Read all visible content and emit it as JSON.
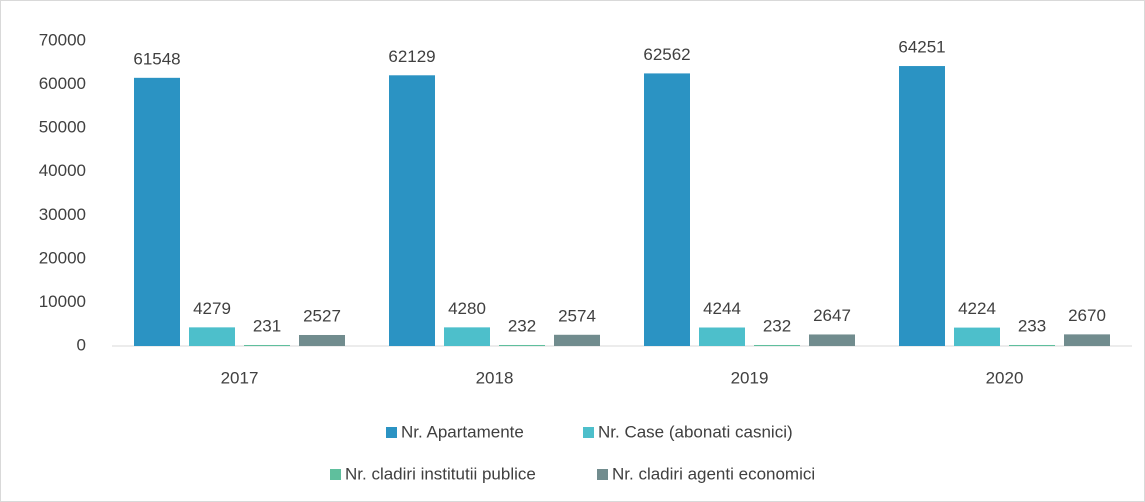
{
  "chart_data": {
    "type": "bar",
    "categories": [
      "2017",
      "2018",
      "2019",
      "2020"
    ],
    "series": [
      {
        "name": "Nr. Apartamente",
        "color": "#2b93c3",
        "values": [
          61548,
          62129,
          62562,
          64251
        ]
      },
      {
        "name": "Nr. Case (abonati casnici)",
        "color": "#4dbfcb",
        "values": [
          4279,
          4280,
          4244,
          4224
        ]
      },
      {
        "name": "Nr. cladiri institutii publice",
        "color": "#5fbf9d",
        "values": [
          231,
          232,
          232,
          233
        ]
      },
      {
        "name": "Nr. cladiri agenti economici",
        "color": "#718c8e",
        "values": [
          2527,
          2574,
          2647,
          2670
        ]
      }
    ],
    "ylim": [
      0,
      70000
    ],
    "yticks": [
      0,
      10000,
      20000,
      30000,
      40000,
      50000,
      60000,
      70000
    ],
    "grid": false,
    "legend": "bottom"
  }
}
